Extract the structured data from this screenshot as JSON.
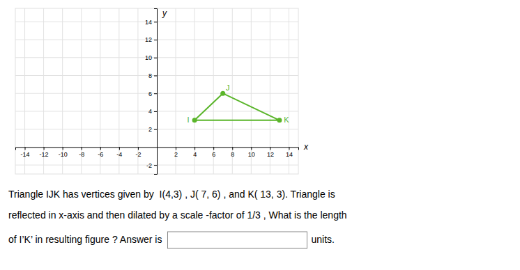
{
  "chart_data": {
    "type": "polygon",
    "x": [
      4,
      7,
      13
    ],
    "values": [
      3,
      6,
      3
    ],
    "vertex_labels": [
      "I",
      "J",
      "K"
    ],
    "color": "#5ab52a",
    "marker": "circle",
    "xlim": [
      -15,
      15
    ],
    "ylim": [
      -3,
      15.5
    ],
    "xticks": [
      -14,
      -12,
      -10,
      -8,
      -6,
      -4,
      -2,
      2,
      4,
      6,
      8,
      10,
      12,
      14
    ],
    "yticks": [
      -2,
      2,
      4,
      6,
      8,
      10,
      12,
      14
    ],
    "grid": true,
    "xlabel": "x",
    "ylabel": "y",
    "text_lines": [
      "Triangle IJK has vertices given by  I(4,3) , J( 7, 6) , and K( 13, 3). Triangle is",
      "reflected in x-axis and then dilated by a scale -factor of 1/3 , What is the length",
      "of I’K’ in resulting figure ? Answer is"
    ],
    "answer_suffix": "units."
  }
}
